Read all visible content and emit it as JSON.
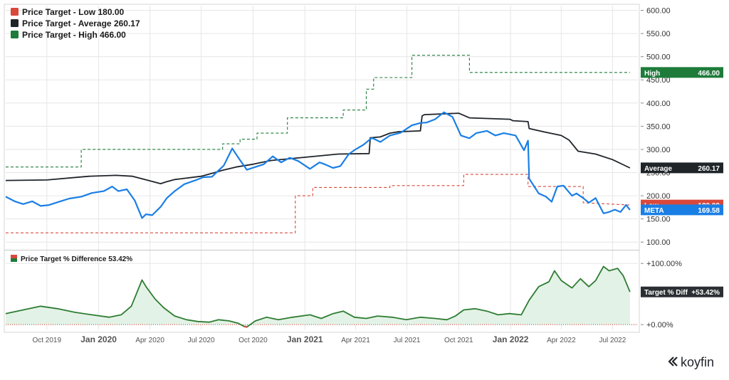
{
  "brand": {
    "name": "koyfin"
  },
  "colors": {
    "low": "#d9483b",
    "average": "#1f2429",
    "high": "#1e7b3a",
    "meta": "#1a7fe5",
    "diff": "#2e7d32",
    "diff_fill": "#e3f2e6",
    "grid": "#e6e6e6",
    "axis_text": "#333333"
  },
  "chart_data": [
    {
      "type": "line",
      "title": "",
      "xlabel": "",
      "ylabel": "",
      "ylim": [
        85,
        610
      ],
      "y_ticks": [
        "100.00",
        "150.00",
        "200.00",
        "250.00",
        "300.00",
        "350.00",
        "400.00",
        "450.00",
        "500.00",
        "550.00",
        "600.00"
      ],
      "x_ticks": [
        {
          "date": "2019-10-01",
          "label": "Oct 2019",
          "major": false
        },
        {
          "date": "2020-01-01",
          "label": "Jan 2020",
          "major": true
        },
        {
          "date": "2020-04-01",
          "label": "Apr 2020",
          "major": false
        },
        {
          "date": "2020-07-01",
          "label": "Jul 2020",
          "major": false
        },
        {
          "date": "2020-10-01",
          "label": "Oct 2020",
          "major": false
        },
        {
          "date": "2021-01-01",
          "label": "Jan 2021",
          "major": true
        },
        {
          "date": "2021-04-01",
          "label": "Apr 2021",
          "major": false
        },
        {
          "date": "2021-07-01",
          "label": "Jul 2021",
          "major": false
        },
        {
          "date": "2021-10-01",
          "label": "Oct 2021",
          "major": false
        },
        {
          "date": "2022-01-01",
          "label": "Jan 2022",
          "major": true
        },
        {
          "date": "2022-04-01",
          "label": "Apr 2022",
          "major": false
        },
        {
          "date": "2022-07-01",
          "label": "Jul 2022",
          "major": false
        }
      ],
      "xlim": [
        "2019-07-20",
        "2022-08-15"
      ],
      "legend": [
        {
          "key": "low",
          "label": "Price Target - Low 180.00"
        },
        {
          "key": "average",
          "label": "Price Target - Average 260.17"
        },
        {
          "key": "high",
          "label": "Price Target - High 466.00"
        }
      ],
      "badges": [
        {
          "key": "high",
          "label": "High",
          "value": "466.00",
          "y": 466
        },
        {
          "key": "average",
          "label": "Average",
          "value": "260.17",
          "y": 260.17
        },
        {
          "key": "low",
          "label": "Low",
          "value": "180.00",
          "y": 180
        },
        {
          "key": "meta",
          "label": "META",
          "value": "169.58",
          "y": 169.58
        }
      ],
      "series": [
        {
          "key": "high",
          "style": "step-dashed",
          "points": [
            [
              "2019-07-20",
              262
            ],
            [
              "2019-12-01",
              262
            ],
            [
              "2019-12-01",
              300
            ],
            [
              "2020-08-08",
              300
            ],
            [
              "2020-08-08",
              312
            ],
            [
              "2020-09-08",
              312
            ],
            [
              "2020-09-08",
              322
            ],
            [
              "2020-10-08",
              322
            ],
            [
              "2020-10-08",
              335
            ],
            [
              "2020-12-01",
              335
            ],
            [
              "2020-12-01",
              368
            ],
            [
              "2021-03-10",
              368
            ],
            [
              "2021-03-10",
              385
            ],
            [
              "2021-04-20",
              385
            ],
            [
              "2021-04-20",
              430
            ],
            [
              "2021-05-03",
              430
            ],
            [
              "2021-05-03",
              455
            ],
            [
              "2021-07-10",
              455
            ],
            [
              "2021-07-10",
              503
            ],
            [
              "2021-10-20",
              503
            ],
            [
              "2021-10-20",
              466
            ],
            [
              "2022-08-01",
              466
            ]
          ]
        },
        {
          "key": "low",
          "style": "step-dashed",
          "points": [
            [
              "2019-07-20",
              120
            ],
            [
              "2020-12-15",
              120
            ],
            [
              "2020-12-15",
              200
            ],
            [
              "2021-01-15",
              200
            ],
            [
              "2021-01-15",
              218
            ],
            [
              "2021-06-01",
              218
            ],
            [
              "2021-06-01",
              222
            ],
            [
              "2021-10-10",
              222
            ],
            [
              "2021-10-10",
              246
            ],
            [
              "2022-02-01",
              246
            ],
            [
              "2022-02-01",
              220
            ],
            [
              "2022-05-10",
              220
            ],
            [
              "2022-05-10",
              185
            ],
            [
              "2022-08-01",
              180
            ]
          ]
        },
        {
          "key": "average",
          "style": "line",
          "points": [
            [
              "2019-07-20",
              233
            ],
            [
              "2019-10-01",
              234
            ],
            [
              "2019-12-15",
              242
            ],
            [
              "2020-02-01",
              244
            ],
            [
              "2020-03-01",
              242
            ],
            [
              "2020-03-20",
              236
            ],
            [
              "2020-04-20",
              226
            ],
            [
              "2020-04-30",
              230
            ],
            [
              "2020-05-15",
              235
            ],
            [
              "2020-07-01",
              242
            ],
            [
              "2020-07-25",
              250
            ],
            [
              "2020-08-08",
              255
            ],
            [
              "2020-09-01",
              262
            ],
            [
              "2020-10-01",
              268
            ],
            [
              "2020-11-01",
              276
            ],
            [
              "2021-01-01",
              283
            ],
            [
              "2021-03-01",
              290
            ],
            [
              "2021-04-25",
              291
            ],
            [
              "2021-04-27",
              325
            ],
            [
              "2021-05-15",
              327
            ],
            [
              "2021-06-01",
              335
            ],
            [
              "2021-06-15",
              338
            ],
            [
              "2021-07-25",
              340
            ],
            [
              "2021-07-28",
              372
            ],
            [
              "2021-08-01",
              375
            ],
            [
              "2021-10-01",
              378
            ],
            [
              "2021-10-20",
              368
            ],
            [
              "2021-12-31",
              365
            ],
            [
              "2022-01-05",
              362
            ],
            [
              "2022-02-01",
              360
            ],
            [
              "2022-02-03",
              345
            ],
            [
              "2022-03-01",
              338
            ],
            [
              "2022-04-01",
              330
            ],
            [
              "2022-04-15",
              320
            ],
            [
              "2022-05-01",
              296
            ],
            [
              "2022-06-01",
              290
            ],
            [
              "2022-07-01",
              278
            ],
            [
              "2022-08-01",
              260
            ]
          ]
        },
        {
          "key": "meta",
          "style": "line",
          "points": [
            [
              "2019-07-20",
              198
            ],
            [
              "2019-08-05",
              188
            ],
            [
              "2019-08-20",
              182
            ],
            [
              "2019-09-05",
              188
            ],
            [
              "2019-09-20",
              178
            ],
            [
              "2019-10-05",
              180
            ],
            [
              "2019-10-25",
              188
            ],
            [
              "2019-11-10",
              194
            ],
            [
              "2019-12-01",
              198
            ],
            [
              "2019-12-20",
              206
            ],
            [
              "2020-01-10",
              210
            ],
            [
              "2020-01-25",
              220
            ],
            [
              "2020-02-05",
              210
            ],
            [
              "2020-02-20",
              214
            ],
            [
              "2020-03-05",
              190
            ],
            [
              "2020-03-18",
              152
            ],
            [
              "2020-03-25",
              160
            ],
            [
              "2020-04-05",
              158
            ],
            [
              "2020-04-20",
              176
            ],
            [
              "2020-05-01",
              195
            ],
            [
              "2020-05-15",
              210
            ],
            [
              "2020-06-01",
              225
            ],
            [
              "2020-06-20",
              233
            ],
            [
              "2020-07-05",
              240
            ],
            [
              "2020-07-20",
              241
            ],
            [
              "2020-08-01",
              255
            ],
            [
              "2020-08-10",
              265
            ],
            [
              "2020-08-25",
              302
            ],
            [
              "2020-09-05",
              282
            ],
            [
              "2020-09-20",
              256
            ],
            [
              "2020-10-05",
              262
            ],
            [
              "2020-10-20",
              268
            ],
            [
              "2020-11-05",
              285
            ],
            [
              "2020-11-20",
              272
            ],
            [
              "2020-12-05",
              282
            ],
            [
              "2020-12-20",
              275
            ],
            [
              "2021-01-10",
              258
            ],
            [
              "2021-01-27",
              272
            ],
            [
              "2021-02-05",
              268
            ],
            [
              "2021-02-20",
              260
            ],
            [
              "2021-03-05",
              264
            ],
            [
              "2021-03-20",
              290
            ],
            [
              "2021-04-01",
              300
            ],
            [
              "2021-04-15",
              310
            ],
            [
              "2021-04-30",
              325
            ],
            [
              "2021-05-15",
              316
            ],
            [
              "2021-06-01",
              330
            ],
            [
              "2021-06-20",
              336
            ],
            [
              "2021-07-10",
              352
            ],
            [
              "2021-07-25",
              357
            ],
            [
              "2021-08-05",
              358
            ],
            [
              "2021-08-20",
              365
            ],
            [
              "2021-09-05",
              380
            ],
            [
              "2021-09-20",
              370
            ],
            [
              "2021-10-05",
              330
            ],
            [
              "2021-10-20",
              324
            ],
            [
              "2021-11-01",
              335
            ],
            [
              "2021-11-20",
              340
            ],
            [
              "2021-12-05",
              330
            ],
            [
              "2021-12-20",
              335
            ],
            [
              "2022-01-10",
              330
            ],
            [
              "2022-01-25",
              298
            ],
            [
              "2022-02-01",
              319
            ],
            [
              "2022-02-03",
              237
            ],
            [
              "2022-02-20",
              205
            ],
            [
              "2022-03-05",
              198
            ],
            [
              "2022-03-15",
              187
            ],
            [
              "2022-03-25",
              220
            ],
            [
              "2022-04-05",
              222
            ],
            [
              "2022-04-20",
              200
            ],
            [
              "2022-04-28",
              205
            ],
            [
              "2022-05-10",
              195
            ],
            [
              "2022-05-20",
              185
            ],
            [
              "2022-06-01",
              195
            ],
            [
              "2022-06-15",
              162
            ],
            [
              "2022-06-25",
              165
            ],
            [
              "2022-07-05",
              170
            ],
            [
              "2022-07-15",
              165
            ],
            [
              "2022-07-25",
              180
            ],
            [
              "2022-08-01",
              169.58
            ]
          ]
        }
      ]
    },
    {
      "type": "area",
      "title": "Price Target % Difference 53.42%",
      "xlabel": "",
      "ylabel": "",
      "ylim": [
        -8,
        120
      ],
      "y_ticks": [
        {
          "value": 0,
          "label": "+0.00%"
        },
        {
          "value": 100,
          "label": "+100.00%"
        }
      ],
      "badge": {
        "label": "Target % Diff",
        "value": "+53.42%",
        "y": 53.42
      },
      "series": [
        {
          "key": "diff",
          "points": [
            [
              "2019-07-20",
              18
            ],
            [
              "2019-08-20",
              24
            ],
            [
              "2019-09-20",
              30
            ],
            [
              "2019-10-20",
              26
            ],
            [
              "2019-11-20",
              20
            ],
            [
              "2019-12-20",
              16
            ],
            [
              "2020-01-20",
              12
            ],
            [
              "2020-02-10",
              16
            ],
            [
              "2020-02-28",
              30
            ],
            [
              "2020-03-18",
              73
            ],
            [
              "2020-03-25",
              62
            ],
            [
              "2020-04-10",
              42
            ],
            [
              "2020-04-25",
              28
            ],
            [
              "2020-05-15",
              14
            ],
            [
              "2020-06-05",
              8
            ],
            [
              "2020-06-25",
              5
            ],
            [
              "2020-07-15",
              4
            ],
            [
              "2020-08-01",
              8
            ],
            [
              "2020-08-20",
              6
            ],
            [
              "2020-09-05",
              2
            ],
            [
              "2020-09-15",
              -3
            ],
            [
              "2020-09-20",
              -4
            ],
            [
              "2020-10-05",
              6
            ],
            [
              "2020-10-25",
              12
            ],
            [
              "2020-11-15",
              8
            ],
            [
              "2020-12-10",
              12
            ],
            [
              "2021-01-10",
              16
            ],
            [
              "2021-01-30",
              10
            ],
            [
              "2021-02-20",
              18
            ],
            [
              "2021-03-10",
              22
            ],
            [
              "2021-03-30",
              12
            ],
            [
              "2021-04-20",
              10
            ],
            [
              "2021-05-10",
              14
            ],
            [
              "2021-06-05",
              12
            ],
            [
              "2021-06-30",
              8
            ],
            [
              "2021-07-25",
              12
            ],
            [
              "2021-08-20",
              10
            ],
            [
              "2021-09-10",
              8
            ],
            [
              "2021-09-25",
              14
            ],
            [
              "2021-10-10",
              24
            ],
            [
              "2021-10-30",
              26
            ],
            [
              "2021-11-20",
              22
            ],
            [
              "2021-12-10",
              16
            ],
            [
              "2021-12-30",
              18
            ],
            [
              "2022-01-20",
              16
            ],
            [
              "2022-02-03",
              40
            ],
            [
              "2022-02-20",
              62
            ],
            [
              "2022-03-10",
              70
            ],
            [
              "2022-03-20",
              88
            ],
            [
              "2022-04-01",
              72
            ],
            [
              "2022-04-20",
              60
            ],
            [
              "2022-05-05",
              75
            ],
            [
              "2022-05-20",
              62
            ],
            [
              "2022-06-01",
              72
            ],
            [
              "2022-06-15",
              95
            ],
            [
              "2022-06-25",
              88
            ],
            [
              "2022-07-10",
              92
            ],
            [
              "2022-07-20",
              80
            ],
            [
              "2022-08-01",
              53.42
            ]
          ]
        }
      ]
    }
  ]
}
